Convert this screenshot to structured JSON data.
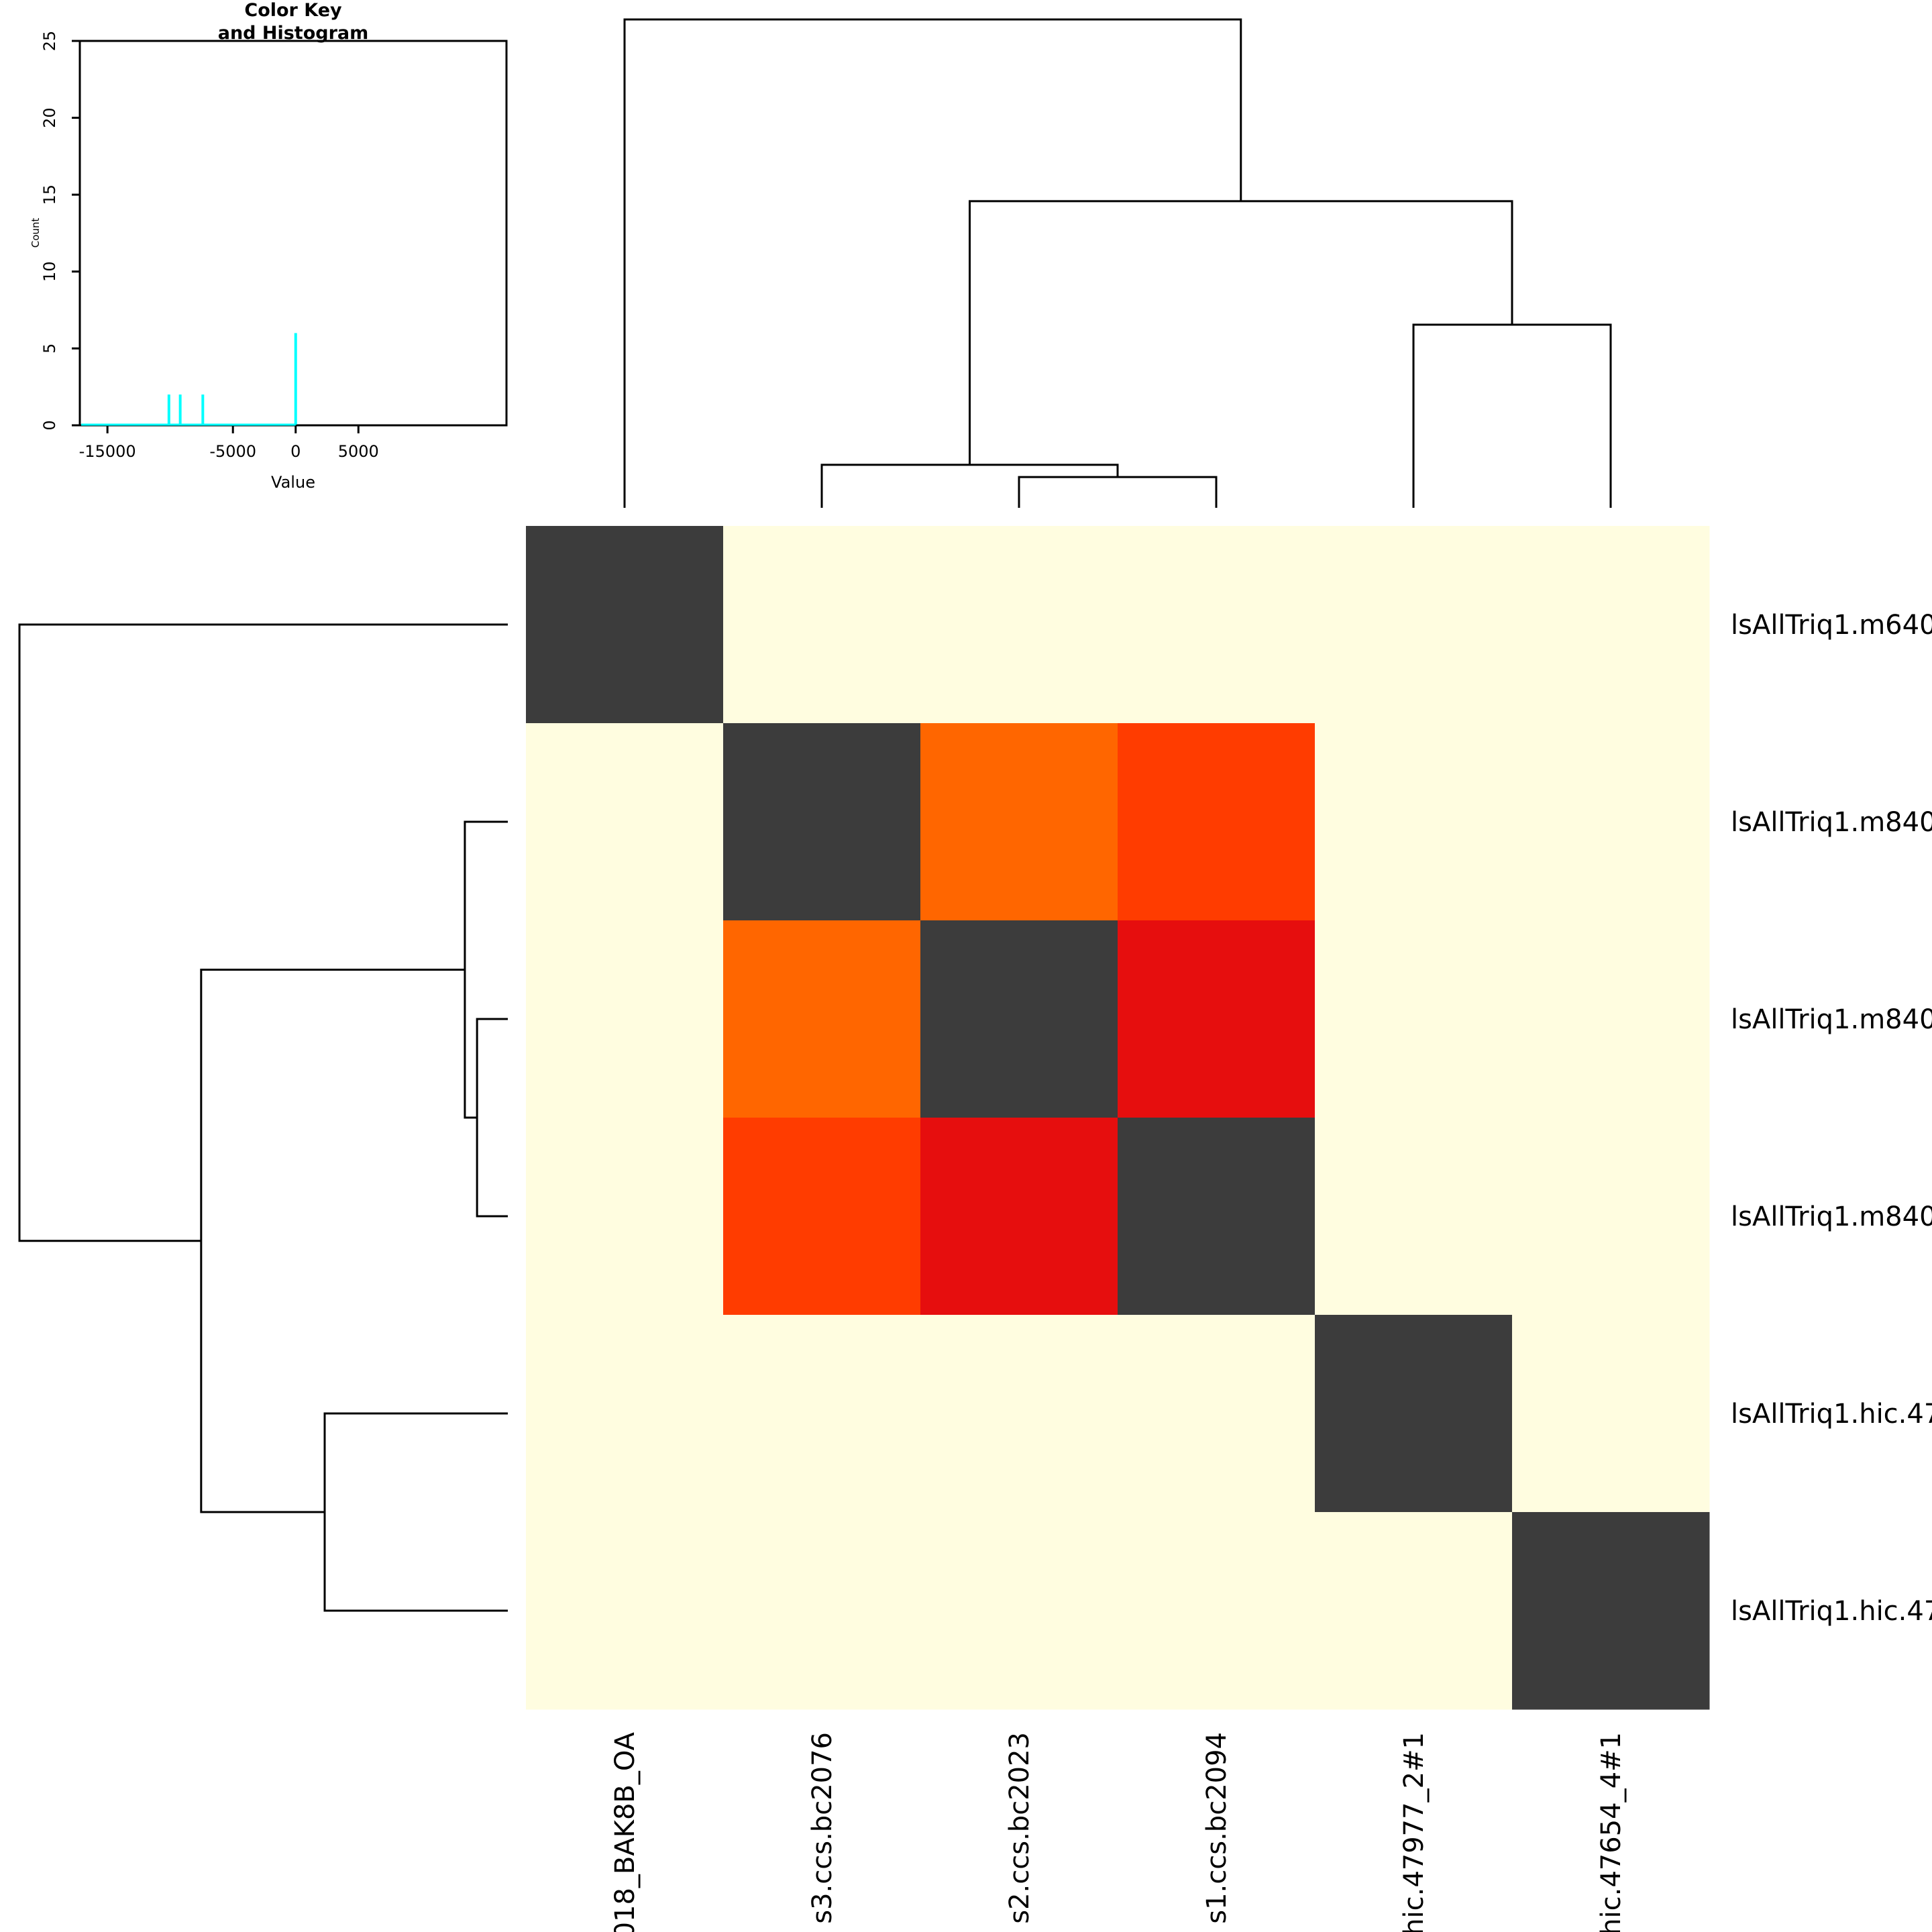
{
  "chart_data": [
    {
      "type": "heatmap",
      "row_labels": [
        "lsAllTriq1.m640",
        "lsAllTriq1.m840",
        "lsAllTriq1.m840",
        "lsAllTriq1.m840",
        "lsAllTriq1.hic.47",
        "lsAllTriq1.hic.47"
      ],
      "column_labels": [
        "018_BAK8B_OA",
        "s3.ccs.bc2076",
        "s2.ccs.bc2023",
        "s1.ccs.bc2094",
        "hic.47977_2#1",
        "hic.47654_4#1"
      ],
      "cell_colors": [
        [
          "#3c3c3c",
          "#fffde0",
          "#fffde0",
          "#fffde0",
          "#fffde0",
          "#fffde0"
        ],
        [
          "#fffde0",
          "#3c3c3c",
          "#ff6600",
          "#ff3c00",
          "#fffde0",
          "#fffde0"
        ],
        [
          "#fffde0",
          "#ff6600",
          "#3c3c3c",
          "#e60e0e",
          "#fffde0",
          "#fffde0"
        ],
        [
          "#fffde0",
          "#ff3c00",
          "#e60e0e",
          "#3c3c3c",
          "#fffde0",
          "#fffde0"
        ],
        [
          "#fffde0",
          "#fffde0",
          "#fffde0",
          "#fffde0",
          "#3c3c3c",
          "#fffde0"
        ],
        [
          "#fffde0",
          "#fffde0",
          "#fffde0",
          "#fffde0",
          "#fffde0",
          "#3c3c3c"
        ]
      ],
      "dendrogram": {
        "merges": [
          {
            "left": 2,
            "right": 3,
            "height": 0.063
          },
          {
            "left": 1,
            "right": "m0",
            "height": 0.088
          },
          {
            "left": 4,
            "right": 5,
            "height": 0.375
          },
          {
            "left": "m1",
            "right": "m2",
            "height": 0.628
          },
          {
            "left": 0,
            "right": "m3",
            "height": 1.0
          }
        ]
      }
    },
    {
      "type": "bar",
      "title": "Color Key\nand Histogram",
      "title_lines": [
        "Color Key",
        "and Histogram"
      ],
      "xlabel": "Value",
      "ylabel": "Count",
      "x_ticks": [
        -15000,
        -5000,
        0,
        5000
      ],
      "x_tick_labels": [
        "-15000",
        "-5000",
        "0",
        "5000"
      ],
      "y_ticks": [
        0,
        5,
        10,
        15,
        20,
        25
      ],
      "y_tick_labels": [
        "0",
        "5",
        "10",
        "15",
        "20",
        "25"
      ],
      "xlim": [
        -17200,
        16800
      ],
      "ylim": [
        0,
        25
      ],
      "bars": [
        {
          "x": -10100,
          "count": 2
        },
        {
          "x": -9200,
          "count": 2
        },
        {
          "x": -7400,
          "count": 2
        },
        {
          "x": 0,
          "count": 6
        }
      ],
      "line_color": "#00ffff"
    }
  ]
}
